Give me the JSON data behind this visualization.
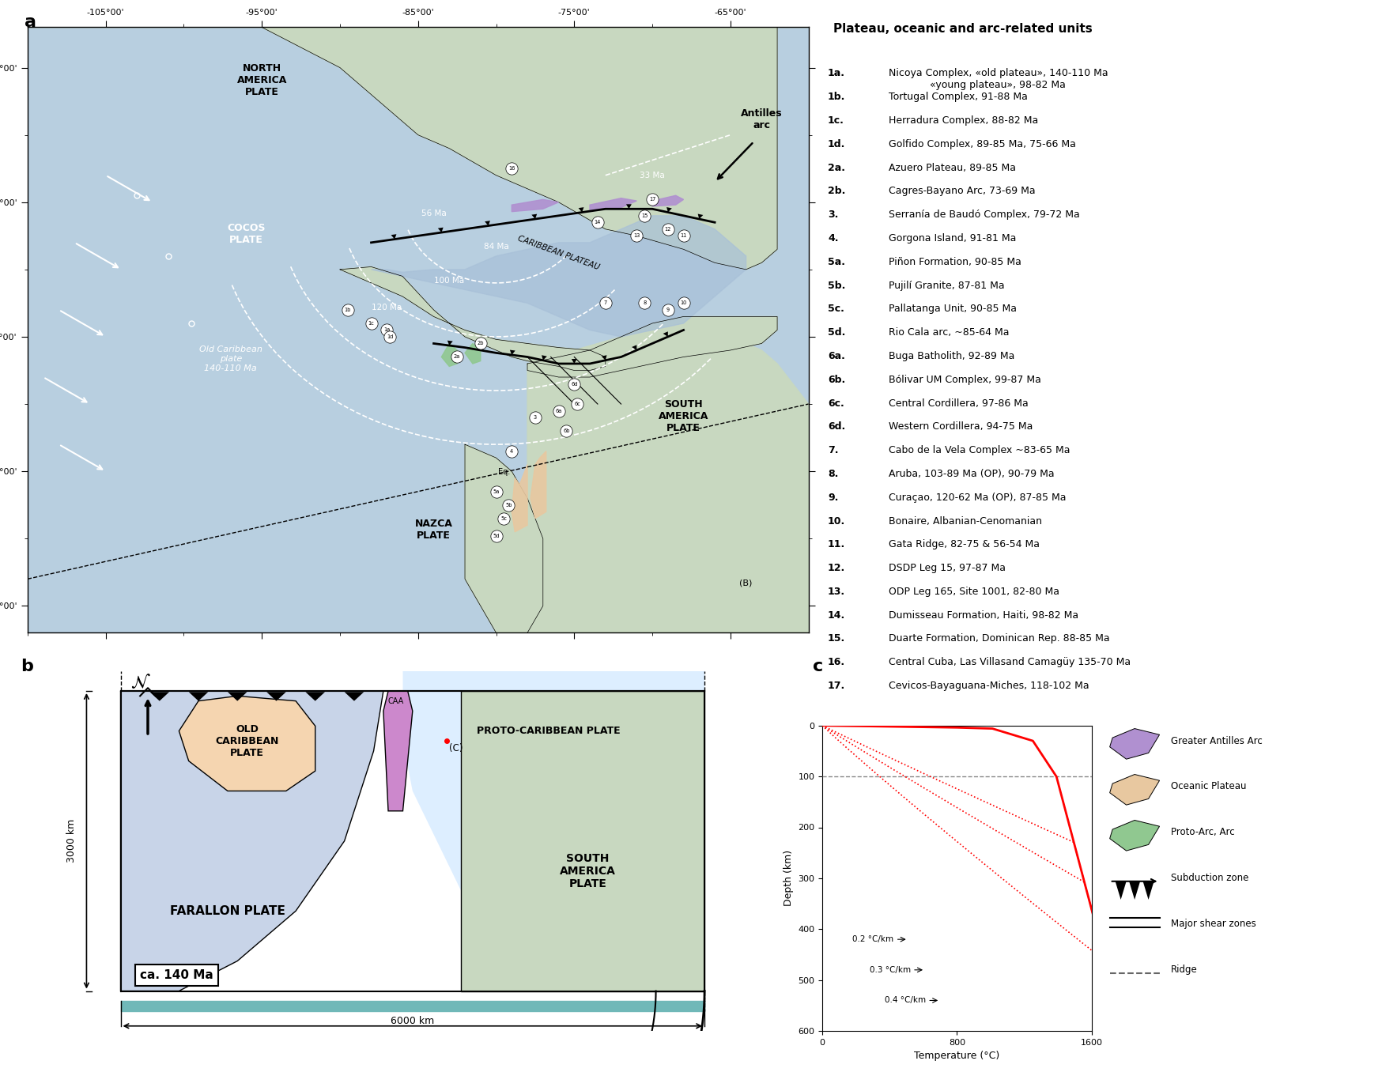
{
  "fig_width": 17.48,
  "fig_height": 13.8,
  "bg_color": "#ffffff",
  "map_bg": "#b8cfe0",
  "land_color": "#c8d8a8",
  "north_america_color": "#c8d8c0",
  "south_america_color": "#c8d8c0",
  "legend_title": "Plateau, oceanic and arc-related units",
  "legend_items": [
    {
      "num": "1a.",
      "text": "Nicoya Complex, «old plateau», 140-110 Ma\n             «young plateau», 98-82 Ma"
    },
    {
      "num": "1b.",
      "text": "Tortugal Complex, 91-88 Ma"
    },
    {
      "num": "1c.",
      "text": "Herradura Complex, 88-82 Ma"
    },
    {
      "num": "1d.",
      "text": "Golfido Complex, 89-85 Ma, 75-66 Ma"
    },
    {
      "num": "2a.",
      "text": "Azuero Plateau, 89-85 Ma"
    },
    {
      "num": "2b.",
      "text": "Cagres-Bayano Arc, 73-69 Ma"
    },
    {
      "num": "3.",
      "text": "Serranía de Baudó Complex, 79-72 Ma"
    },
    {
      "num": "4.",
      "text": "Gorgona Island, 91-81 Ma"
    },
    {
      "num": "5a.",
      "text": "Piñon Formation, 90-85 Ma"
    },
    {
      "num": "5b.",
      "text": "Pujilí Granite, 87-81 Ma"
    },
    {
      "num": "5c.",
      "text": "Pallatanga Unit, 90-85 Ma"
    },
    {
      "num": "5d.",
      "text": "Rio Cala arc, ~85-64 Ma"
    },
    {
      "num": "6a.",
      "text": "Buga Batholith, 92-89 Ma"
    },
    {
      "num": "6b.",
      "text": "Bólivar UM Complex, 99-87 Ma"
    },
    {
      "num": "6c.",
      "text": "Central Cordillera, 97-86 Ma"
    },
    {
      "num": "6d.",
      "text": "Western Cordillera, 94-75 Ma"
    },
    {
      "num": "7.",
      "text": "Cabo de la Vela Complex ~83-65 Ma"
    },
    {
      "num": "8.",
      "text": "Aruba, 103-89 Ma (OP), 90-79 Ma"
    },
    {
      "num": "9.",
      "text": "Curaçao, 120-62 Ma (OP), 87-85 Ma"
    },
    {
      "num": "10.",
      "text": "Bonaire, Albanian-Cenomanian"
    },
    {
      "num": "11.",
      "text": "Gata Ridge, 82-75 & 56-54 Ma"
    },
    {
      "num": "12.",
      "text": "DSDP Leg 15, 97-87 Ma"
    },
    {
      "num": "13.",
      "text": "ODP Leg 165, Site 1001, 82-80 Ma"
    },
    {
      "num": "14.",
      "text": "Dumisseau Formation, Haiti, 98-82 Ma"
    },
    {
      "num": "15.",
      "text": "Duarte Formation, Dominican Rep. 88-85 Ma"
    },
    {
      "num": "16.",
      "text": "Central Cuba, Las Villasand Camagüy 135-70 Ma"
    },
    {
      "num": "17.",
      "text": "Cevicos-Bayaguana-Miches, 118-102 Ma"
    }
  ],
  "map_bg_color": "#b8cfe0",
  "na_color": "#c8d8c0",
  "carib_plateau_color": "#a8c0d8",
  "section_b": {
    "farallon_color": "#c8d4e8",
    "old_caribbean_color": "#f5d5b0",
    "proto_caribbean_color": "#ddeeff",
    "south_america_color": "#c8d8c0",
    "subduction_color": "#cc88cc"
  },
  "section_c": {
    "depth_max": 600,
    "temp_max": 1600,
    "solidus_color": "#cc0000",
    "dashed_depth": 100,
    "geotherm_labels": [
      "0.2 °C/km",
      "0.3 °C/km",
      "0.4 °C/km"
    ],
    "legend_symbols": [
      {
        "label": "Greater Antilles Arc",
        "color": "#b090d0",
        "type": "patch"
      },
      {
        "label": "Oceanic Plateau",
        "color": "#e8c8a0",
        "type": "patch"
      },
      {
        "label": "Proto-Arc, Arc",
        "color": "#90c890",
        "type": "patch"
      },
      {
        "label": "Subduction zone",
        "color": "#000000",
        "type": "arrow"
      },
      {
        "label": "Major shear zones",
        "color": "#666666",
        "type": "line"
      },
      {
        "label": "Ridge",
        "color": "#666666",
        "type": "dashed"
      }
    ]
  }
}
